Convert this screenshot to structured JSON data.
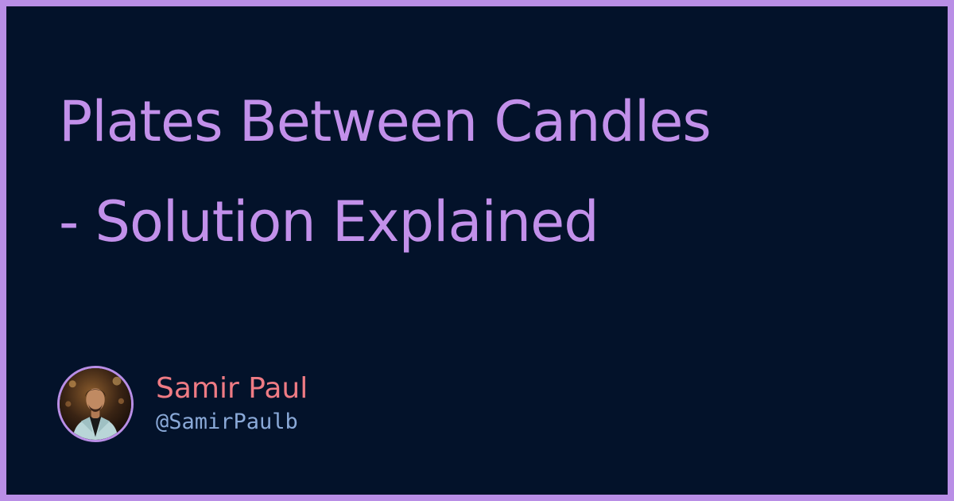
{
  "title": {
    "line1": "Plates Between Candles",
    "line2": "- Solution Explained"
  },
  "author": {
    "name": "Samir Paul",
    "handle": "@SamirPaulb",
    "avatar_icon": "person-portrait-photo"
  },
  "colors": {
    "frame": "#b98ee6",
    "background": "#03122a",
    "title": "#c290ea",
    "name": "#ef7b84",
    "handle": "#8aa9d8"
  }
}
